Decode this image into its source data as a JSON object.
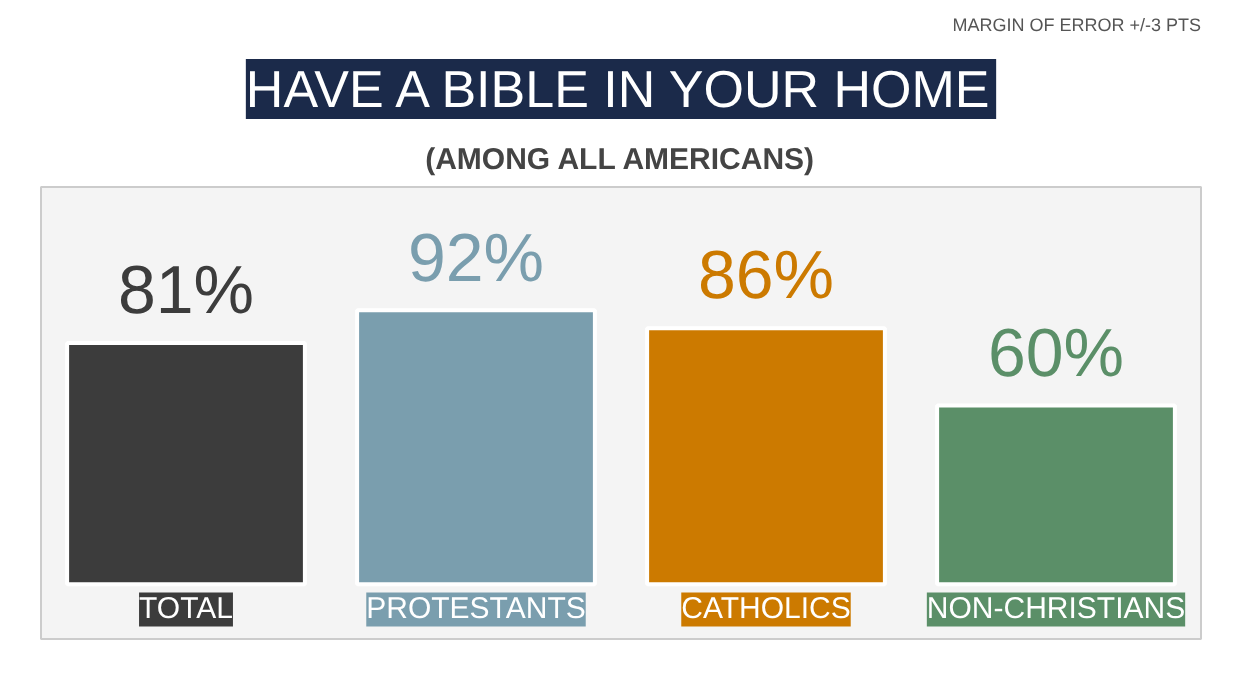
{
  "chart_data": {
    "type": "bar",
    "title": "HAVE A BIBLE IN YOUR HOME",
    "subtitle": "(AMONG ALL AMERICANS)",
    "annotations": [
      "MARGIN OF ERROR +/-3 PTS"
    ],
    "categories": [
      "TOTAL",
      "PROTESTANTS",
      "CATHOLICS",
      "NON-CHRISTIANS"
    ],
    "values": [
      81,
      92,
      86,
      60
    ],
    "value_labels": [
      "81%",
      "92%",
      "86%",
      "60%"
    ],
    "colors": [
      "#3c3c3c",
      "#7a9eae",
      "#cc7a00",
      "#5b8f68"
    ],
    "grid": false
  }
}
